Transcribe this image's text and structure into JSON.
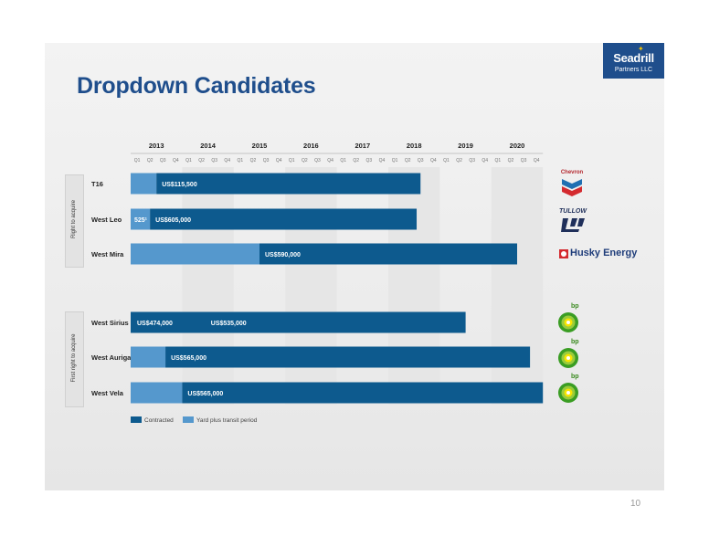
{
  "title": "Dropdown Candidates",
  "logo": {
    "name": "Seadrill",
    "sub": "Partners LLC"
  },
  "page_number": "10",
  "groups": [
    {
      "label": "Right to acquire"
    },
    {
      "label": "First right to acquire"
    }
  ],
  "customers": {
    "chevron": "Chevron",
    "tullow": "TULLOW",
    "husky": "Husky Energy",
    "bp": "bp"
  },
  "colors": {
    "contracted": "#0d5a8e",
    "yard": "#5598cd",
    "title": "#1f4e8c",
    "shade": "#e6e6e6"
  },
  "chart_data": {
    "type": "bar",
    "orientation": "horizontal",
    "x_axis": {
      "years": [
        "2013",
        "2014",
        "2015",
        "2016",
        "2017",
        "2018",
        "2019",
        "2020"
      ],
      "quarters": [
        "Q1",
        "Q2",
        "Q3",
        "Q4"
      ],
      "range_quarters": [
        0,
        32
      ]
    },
    "rigs": [
      {
        "name": "T16",
        "group": 0,
        "customer": "chevron",
        "segments": [
          {
            "type": "yard",
            "start": 0,
            "end": 2,
            "label": ""
          },
          {
            "type": "contracted",
            "start": 2,
            "end": 22.5,
            "label": "US$115,500"
          }
        ]
      },
      {
        "name": "West Leo",
        "group": 0,
        "customer": "tullow",
        "segments": [
          {
            "type": "yard",
            "start": 0,
            "end": 1.5,
            "label": "525¹"
          },
          {
            "type": "contracted",
            "start": 1.5,
            "end": 22.2,
            "label": "US$605,000"
          }
        ]
      },
      {
        "name": "West Mira",
        "group": 0,
        "customer": "husky",
        "segments": [
          {
            "type": "yard",
            "start": 0,
            "end": 10,
            "label": ""
          },
          {
            "type": "contracted",
            "start": 10,
            "end": 30,
            "label": "US$590,000"
          }
        ]
      },
      {
        "name": "West Sirius",
        "group": 1,
        "customer": "bp",
        "segments": [
          {
            "type": "contracted",
            "start": 0,
            "end": 26,
            "label": "US$474,000"
          },
          {
            "type": "contracted",
            "start": 5.8,
            "end": 26,
            "label": "US$535,000",
            "nobox": true
          }
        ]
      },
      {
        "name": "West Auriga",
        "group": 1,
        "customer": "bp",
        "segments": [
          {
            "type": "yard",
            "start": 0,
            "end": 2.7,
            "label": ""
          },
          {
            "type": "contracted",
            "start": 2.7,
            "end": 31,
            "label": "US$565,000"
          }
        ]
      },
      {
        "name": "West Vela",
        "group": 1,
        "customer": "bp",
        "segments": [
          {
            "type": "yard",
            "start": 0,
            "end": 4,
            "label": ""
          },
          {
            "type": "contracted",
            "start": 4,
            "end": 32,
            "label": "US$565,000"
          }
        ]
      }
    ],
    "legend": [
      {
        "type": "contracted",
        "label": "Contracted"
      },
      {
        "type": "yard",
        "label": "Yard plus transit period"
      }
    ]
  }
}
